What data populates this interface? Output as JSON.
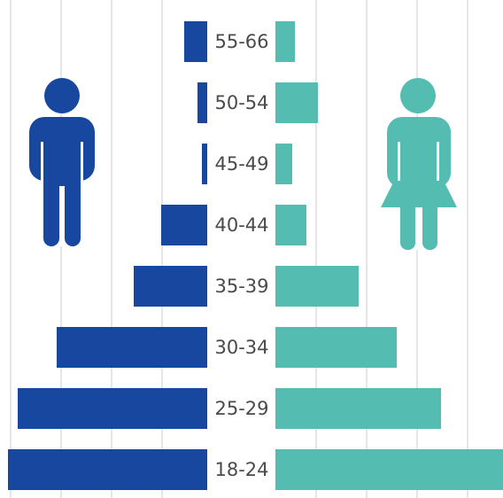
{
  "chart_data": {
    "type": "bar",
    "orientation": "horizontal",
    "layout": "population-pyramid",
    "categories": [
      "55-66",
      "50-54",
      "45-49",
      "40-44",
      "35-39",
      "30-34",
      "25-29",
      "18-24"
    ],
    "series": [
      {
        "values": [
          26,
          11,
          6,
          52,
          83,
          170,
          214,
          225
        ]
      },
      {
        "values": [
          22,
          48,
          19,
          35,
          94,
          137,
          187,
          257
        ]
      }
    ],
    "title": "",
    "xlabel": "",
    "ylabel": "",
    "grid": true,
    "legend": "none",
    "icons": [
      "male-figure-icon",
      "female-figure-icon"
    ],
    "colors": {
      "male": "#17479e",
      "female": "#55bcb2",
      "grid": "#cccccc",
      "label": "#4a4a4a"
    }
  }
}
